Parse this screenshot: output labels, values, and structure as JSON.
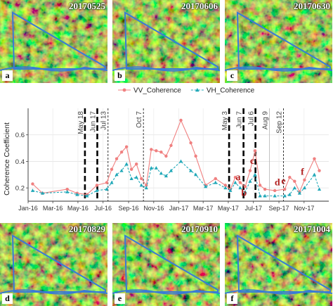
{
  "panels_top": [
    {
      "date": "20170525",
      "letter": "a"
    },
    {
      "date": "20170606",
      "letter": "b"
    },
    {
      "date": "20170630",
      "letter": "c"
    }
  ],
  "panels_bottom": [
    {
      "date": "20170829",
      "letter": "d"
    },
    {
      "date": "20170910",
      "letter": "e"
    },
    {
      "date": "20171004",
      "letter": "f"
    }
  ],
  "chart_data": {
    "type": "line",
    "ylabel": "Coherence Coefficient",
    "xlabel": "",
    "ylim": [
      0.1,
      0.8
    ],
    "yticks": [
      0.2,
      0.4,
      0.6
    ],
    "xlim": [
      "2016-01-01",
      "2017-12-31"
    ],
    "xticks": [
      {
        "date": "2016-01-01",
        "label": "Jan-16"
      },
      {
        "date": "2016-03-01",
        "label": "Mar-16"
      },
      {
        "date": "2016-05-01",
        "label": "May-16"
      },
      {
        "date": "2016-07-01",
        "label": "Jul-16"
      },
      {
        "date": "2016-09-01",
        "label": "Sep-16"
      },
      {
        "date": "2016-11-01",
        "label": "Nov-16"
      },
      {
        "date": "2017-01-01",
        "label": "Jan-17"
      },
      {
        "date": "2017-03-01",
        "label": "Mar-17"
      },
      {
        "date": "2017-05-01",
        "label": "May-17"
      },
      {
        "date": "2017-07-01",
        "label": "Jul-17"
      },
      {
        "date": "2017-09-01",
        "label": "Sep-17"
      },
      {
        "date": "2017-11-01",
        "label": "Nov-17"
      }
    ],
    "grid": true,
    "legend_position": "top",
    "series": [
      {
        "name": "VV_Coherence",
        "color": "#f08080",
        "marker": "circle",
        "line": "solid",
        "points": [
          [
            "2016-01-12",
            0.23
          ],
          [
            "2016-02-05",
            0.16
          ],
          [
            "2016-04-05",
            0.19
          ],
          [
            "2016-04-29",
            0.16
          ],
          [
            "2016-05-23",
            0.15
          ],
          [
            "2016-06-16",
            0.22
          ],
          [
            "2016-07-10",
            0.24
          ],
          [
            "2016-07-22",
            0.34
          ],
          [
            "2016-08-03",
            0.42
          ],
          [
            "2016-08-15",
            0.47
          ],
          [
            "2016-08-27",
            0.51
          ],
          [
            "2016-09-08",
            0.34
          ],
          [
            "2016-09-20",
            0.38
          ],
          [
            "2016-10-02",
            0.27
          ],
          [
            "2016-10-14",
            0.22
          ],
          [
            "2016-10-26",
            0.49
          ],
          [
            "2016-11-07",
            0.48
          ],
          [
            "2016-11-19",
            0.47
          ],
          [
            "2016-12-01",
            0.44
          ],
          [
            "2016-12-13",
            0.52
          ],
          [
            "2017-01-06",
            0.71
          ],
          [
            "2017-01-30",
            0.54
          ],
          [
            "2017-02-11",
            0.44
          ],
          [
            "2017-03-07",
            0.22
          ],
          [
            "2017-03-31",
            0.27
          ],
          [
            "2017-04-24",
            0.22
          ],
          [
            "2017-05-06",
            0.19
          ],
          [
            "2017-05-18",
            0.28
          ],
          [
            "2017-05-30",
            0.24
          ],
          [
            "2017-06-11",
            0.21
          ],
          [
            "2017-06-23",
            0.33
          ],
          [
            "2017-07-05",
            0.48
          ],
          [
            "2017-07-17",
            0.22
          ],
          [
            "2017-07-29",
            0.19
          ],
          [
            "2017-08-22",
            0.18
          ],
          [
            "2017-09-15",
            0.19
          ],
          [
            "2017-09-27",
            0.28
          ],
          [
            "2017-10-09",
            0.25
          ],
          [
            "2017-10-21",
            0.17
          ],
          [
            "2017-11-02",
            0.26
          ],
          [
            "2017-11-26",
            0.42
          ],
          [
            "2017-12-08",
            0.33
          ]
        ]
      },
      {
        "name": "VH_Coherence",
        "color": "#20a8b8",
        "marker": "triangle",
        "line": "dashed",
        "points": [
          [
            "2016-01-12",
            0.18
          ],
          [
            "2016-02-05",
            0.16
          ],
          [
            "2016-04-05",
            0.17
          ],
          [
            "2016-04-29",
            0.15
          ],
          [
            "2016-05-23",
            0.14
          ],
          [
            "2016-06-16",
            0.18
          ],
          [
            "2016-07-10",
            0.19
          ],
          [
            "2016-07-22",
            0.24
          ],
          [
            "2016-08-03",
            0.3
          ],
          [
            "2016-08-15",
            0.33
          ],
          [
            "2016-08-27",
            0.38
          ],
          [
            "2016-09-08",
            0.27
          ],
          [
            "2016-09-20",
            0.28
          ],
          [
            "2016-10-02",
            0.22
          ],
          [
            "2016-10-14",
            0.2
          ],
          [
            "2016-10-26",
            0.35
          ],
          [
            "2016-11-07",
            0.35
          ],
          [
            "2016-11-19",
            0.31
          ],
          [
            "2016-12-01",
            0.29
          ],
          [
            "2016-12-13",
            0.33
          ],
          [
            "2017-01-06",
            0.4
          ],
          [
            "2017-01-30",
            0.33
          ],
          [
            "2017-02-11",
            0.3
          ],
          [
            "2017-03-07",
            0.21
          ],
          [
            "2017-03-31",
            0.24
          ],
          [
            "2017-04-24",
            0.2
          ],
          [
            "2017-05-06",
            0.18
          ],
          [
            "2017-05-18",
            0.24
          ],
          [
            "2017-05-30",
            0.2
          ],
          [
            "2017-06-11",
            0.17
          ],
          [
            "2017-06-23",
            0.25
          ],
          [
            "2017-07-05",
            0.3
          ],
          [
            "2017-07-17",
            0.14
          ],
          [
            "2017-07-29",
            0.14
          ],
          [
            "2017-08-22",
            0.14
          ],
          [
            "2017-09-15",
            0.14
          ],
          [
            "2017-09-27",
            0.15
          ],
          [
            "2017-10-09",
            0.2
          ],
          [
            "2017-10-21",
            0.16
          ],
          [
            "2017-11-02",
            0.2
          ],
          [
            "2017-11-26",
            0.3
          ],
          [
            "2017-12-08",
            0.19
          ]
        ]
      }
    ],
    "vlines": [
      {
        "date": "2016-05-18",
        "label": "May 18",
        "style": "thick-dashed"
      },
      {
        "date": "2016-06-17",
        "label": "Jun 17",
        "style": "thick-dashed"
      },
      {
        "date": "2016-07-13",
        "label": "Jul 13",
        "style": "dashed"
      },
      {
        "date": "2016-10-07",
        "label": "Oct 7",
        "style": "dashed"
      },
      {
        "date": "2017-05-03",
        "label": "May 3",
        "style": "thick-dashed"
      },
      {
        "date": "2017-06-07",
        "label": "Jun 7",
        "style": "thick-dashed"
      },
      {
        "date": "2017-07-06",
        "label": "Jul 6",
        "style": "thick-dashed"
      },
      {
        "date": "2017-08-09",
        "label": "Aug 9",
        "style": "solid-light"
      },
      {
        "date": "2017-09-12",
        "label": "Sep 12",
        "style": "dashed"
      }
    ],
    "annotations": [
      {
        "text": "a",
        "date": "2017-05-25",
        "y": 0.26
      },
      {
        "text": "b",
        "date": "2017-06-08",
        "y": 0.14
      },
      {
        "text": "c",
        "date": "2017-06-28",
        "y": 0.38
      },
      {
        "text": "d",
        "date": "2017-08-28",
        "y": 0.22
      },
      {
        "text": "e",
        "date": "2017-09-12",
        "y": 0.23
      },
      {
        "text": "f",
        "date": "2017-10-28",
        "y": 0.3
      }
    ]
  }
}
